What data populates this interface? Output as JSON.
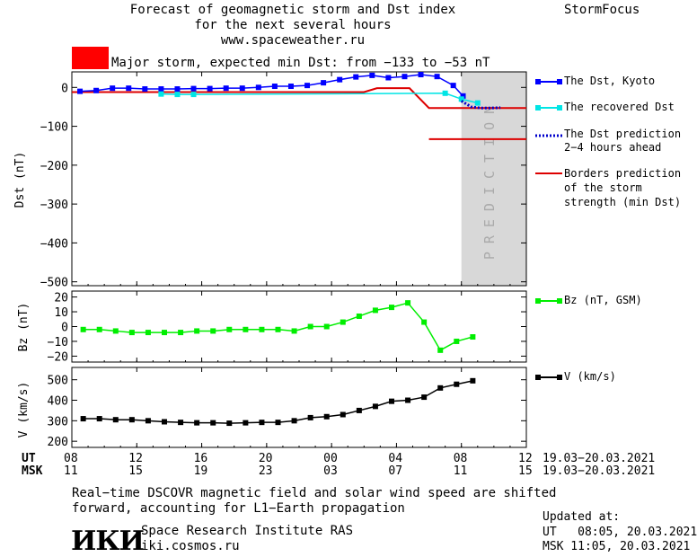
{
  "header": {
    "title_line1": "Forecast of geomagnetic storm and Dst index",
    "title_line2": "for the next several hours",
    "website": "www.spaceweather.ru",
    "brand": "StormFocus"
  },
  "storm_alert": {
    "text": "Major storm, expected min Dst: from −133 to −53 nT",
    "color": "#ff0000"
  },
  "chart_data": [
    {
      "type": "line",
      "ylabel": "Dst (nT)",
      "ylim": [
        -510,
        40
      ],
      "yticks": [
        0,
        -100,
        -200,
        -300,
        -400,
        -500
      ],
      "ytick_labels": [
        "0",
        "−100",
        "−200",
        "−300",
        "−400",
        "−500"
      ],
      "xlim": [
        8,
        36
      ],
      "prediction_band": {
        "from": 32,
        "to": 36,
        "label": "PREDICTION",
        "color": "#d8d8d8"
      },
      "series": [
        {
          "name": "The Dst, Kyoto",
          "color": "#0000ff",
          "marker": "square",
          "x": [
            8.5,
            9.5,
            10.5,
            11.5,
            12.5,
            13.5,
            14.5,
            15.5,
            16.5,
            17.5,
            18.5,
            19.5,
            20.5,
            21.5,
            22.5,
            23.5,
            24.5,
            25.5,
            26.5,
            27.5,
            28.5,
            29.5,
            30.5,
            31.5,
            32.1
          ],
          "values": [
            -10,
            -8,
            -2,
            -2,
            -4,
            -4,
            -4,
            -3,
            -3,
            -2,
            -2,
            0,
            3,
            3,
            5,
            12,
            20,
            27,
            31,
            25,
            28,
            33,
            28,
            5,
            -22
          ]
        },
        {
          "name": "The recovered Dst",
          "color": "#00e5e5",
          "marker": "square",
          "x": [
            13.5,
            14.5,
            15.5,
            31.0,
            32.0,
            33.0
          ],
          "values": [
            -17,
            -18,
            -18,
            -15,
            -30,
            -40
          ]
        },
        {
          "name": "The Dst prediction 2–4 hours ahead",
          "color": "#0000cc",
          "style": "dotted",
          "x": [
            32.0,
            32.6,
            33.2,
            33.8,
            34.4
          ],
          "values": [
            -35,
            -50,
            -53,
            -53,
            -52
          ]
        }
      ],
      "borders": {
        "name": "Borders prediction of the storm strength (min Dst)",
        "color": "#dd0000",
        "lower_x": [
          8,
          26.0,
          26.8,
          28.8,
          30.0,
          36
        ],
        "lower_values": [
          -12,
          -12,
          -2,
          -2,
          -53,
          -53
        ],
        "upper_x": [
          30.0,
          36
        ],
        "upper_values": [
          -133,
          -133
        ]
      }
    },
    {
      "type": "line",
      "ylabel": "Bz (nT)",
      "ylim": [
        -24,
        24
      ],
      "yticks": [
        20,
        10,
        0,
        -10,
        -20
      ],
      "ytick_labels": [
        "20",
        "10",
        "0",
        "−10",
        "−20"
      ],
      "xlim": [
        8,
        36
      ],
      "series": [
        {
          "name": "Bz (nT, GSM)",
          "color": "#00ee00",
          "marker": "square",
          "x": [
            8.7,
            9.7,
            10.7,
            11.7,
            12.7,
            13.7,
            14.7,
            15.7,
            16.7,
            17.7,
            18.7,
            19.7,
            20.7,
            21.7,
            22.7,
            23.7,
            24.7,
            25.7,
            26.7,
            27.7,
            28.7,
            29.7,
            30.7,
            31.7,
            32.7
          ],
          "values": [
            -2,
            -2,
            -3,
            -4,
            -4,
            -4,
            -4,
            -3,
            -3,
            -2,
            -2,
            -2,
            -2,
            -3,
            0,
            0,
            3,
            7,
            11,
            13,
            16,
            3,
            -16,
            -10,
            -7
          ]
        }
      ]
    },
    {
      "type": "line",
      "ylabel": "V (km/s)",
      "ylim": [
        170,
        560
      ],
      "yticks": [
        500,
        400,
        300,
        200
      ],
      "ytick_labels": [
        "500",
        "400",
        "300",
        "200"
      ],
      "xlim": [
        8,
        36
      ],
      "series": [
        {
          "name": "V (km/s)",
          "color": "#000000",
          "marker": "square",
          "x": [
            8.7,
            9.7,
            10.7,
            11.7,
            12.7,
            13.7,
            14.7,
            15.7,
            16.7,
            17.7,
            18.7,
            19.7,
            20.7,
            21.7,
            22.7,
            23.7,
            24.7,
            25.7,
            26.7,
            27.7,
            28.7,
            29.7,
            30.7,
            31.7,
            32.7
          ],
          "values": [
            310,
            310,
            305,
            305,
            300,
            295,
            292,
            290,
            290,
            288,
            290,
            292,
            292,
            300,
            315,
            320,
            330,
            350,
            370,
            395,
            400,
            415,
            460,
            478,
            495
          ]
        }
      ]
    }
  ],
  "x_axis": {
    "ut_label": "UT",
    "msk_label": "MSK",
    "tick_positions": [
      8,
      12,
      16,
      20,
      24,
      28,
      32,
      36
    ],
    "ut_ticks": [
      "08",
      "12",
      "16",
      "20",
      "00",
      "04",
      "08",
      "12"
    ],
    "msk_ticks": [
      "11",
      "15",
      "19",
      "23",
      "03",
      "07",
      "11",
      "15"
    ],
    "ut_dates": "19.03−20.03.2021",
    "msk_dates": "19.03−20.03.2021"
  },
  "legend": {
    "dst_kyoto": "The Dst, Kyoto",
    "recovered": "The recovered Dst",
    "prediction_line1": "The Dst prediction",
    "prediction_line2": "2−4 hours ahead",
    "borders_line1": "Borders prediction",
    "borders_line2": "of the storm",
    "borders_line3": "strength (min Dst)",
    "bz": "Bz (nT, GSM)",
    "v": "V (km/s)"
  },
  "footer": {
    "note_line1": "Real−time DSCOVR magnetic field and solar wind speed are shifted",
    "note_line2": "forward, accounting for L1−Earth propagation",
    "institute_logo": "ИКИ",
    "institute_name": "Space Research Institute RAS",
    "institute_site": "iki.cosmos.ru",
    "updated_label": "Updated at:",
    "updated_ut": "UT   08:05, 20.03.2021",
    "updated_msk": "MSK 11:05, 20.03.2021"
  }
}
